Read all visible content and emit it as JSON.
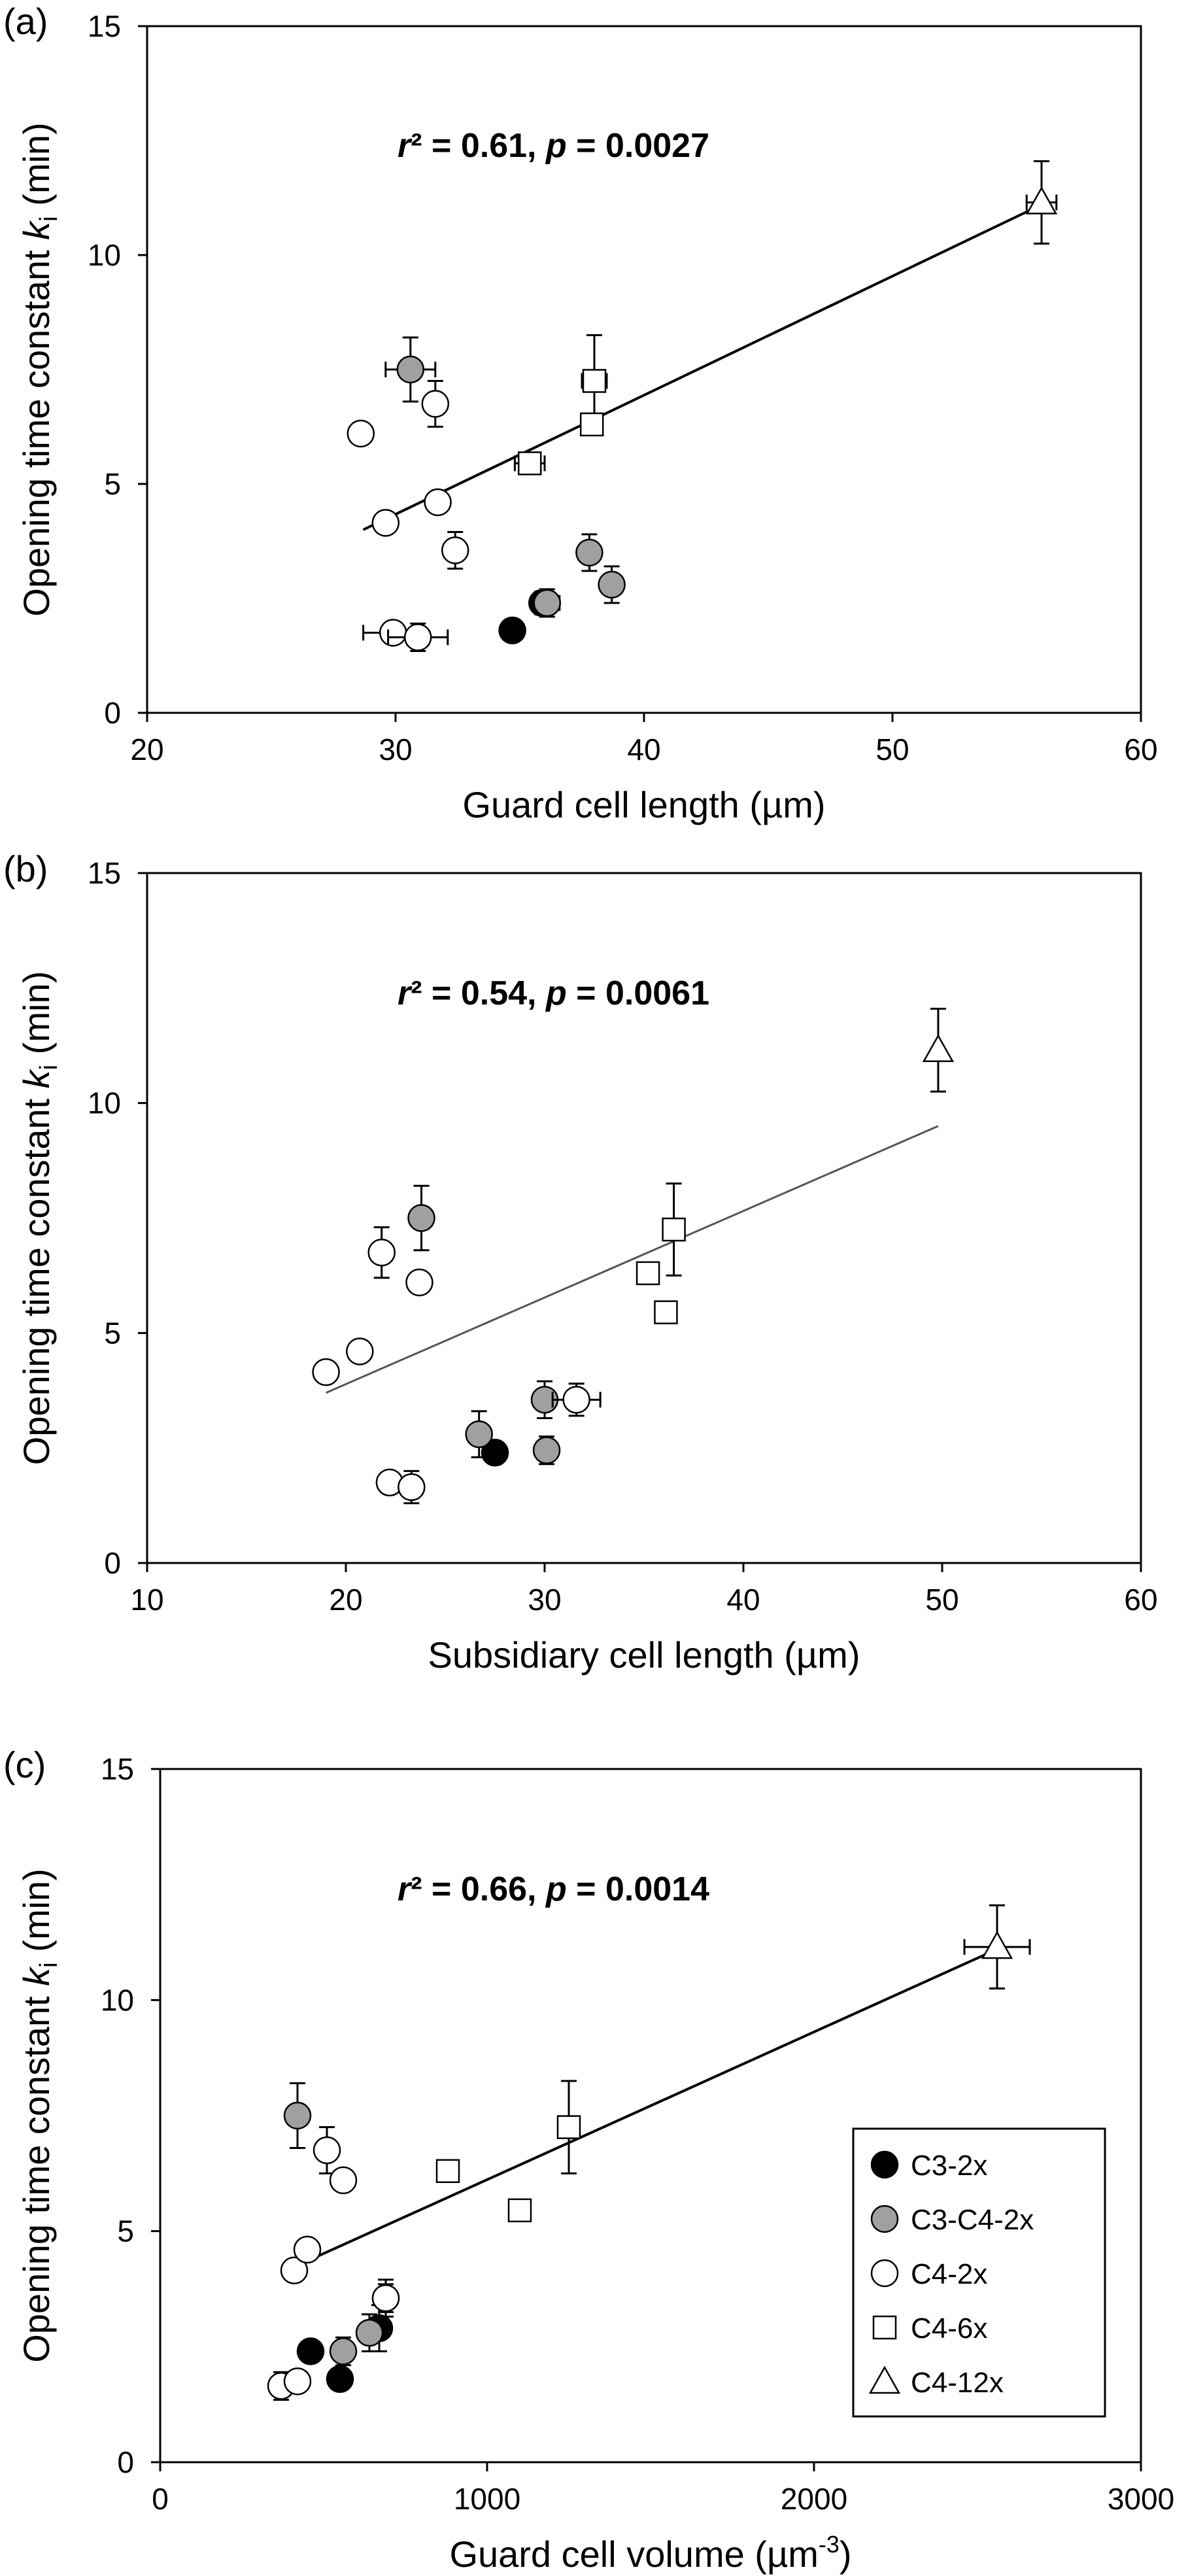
{
  "chart_data": [
    {
      "type": "scatter",
      "panel_label": "(a)",
      "xlabel": "Guard cell length  (µm)",
      "ylabel": "Opening time constant ",
      "ylabel_k": "k",
      "ylabel_sub": "i",
      "ylabel_unit": " (min)",
      "xlim": [
        20,
        60
      ],
      "ylim": [
        0,
        15
      ],
      "xticks": [
        20,
        30,
        40,
        50,
        60
      ],
      "yticks": [
        0,
        5,
        10,
        15
      ],
      "stat_r": "r",
      "stat_r2": "² = 0.61, ",
      "stat_p": "p",
      "stat_pval": " = 0.0027",
      "grid": false,
      "trendline": {
        "x": [
          28.7,
          56.0
        ],
        "y": [
          4.0,
          11.1
        ],
        "color": "#000000"
      },
      "series": [
        {
          "name": "C3-2x",
          "points": [
            {
              "x": 34.7,
              "y": 1.8
            },
            {
              "x": 35.9,
              "y": 2.4,
              "yerr": 0.25,
              "xerr": 0.4
            }
          ]
        },
        {
          "name": "C3-C4-2x",
          "points": [
            {
              "x": 30.6,
              "y": 7.5,
              "yerr": 0.7,
              "xerr": 1.0
            },
            {
              "x": 36.1,
              "y": 2.4,
              "yerr": 0.3,
              "xerr": 0.5
            },
            {
              "x": 37.8,
              "y": 3.5,
              "yerr": 0.4
            },
            {
              "x": 38.7,
              "y": 2.8,
              "yerr": 0.4
            }
          ]
        },
        {
          "name": "C4-2x",
          "points": [
            {
              "x": 28.6,
              "y": 6.1
            },
            {
              "x": 29.6,
              "y": 4.15
            },
            {
              "x": 31.6,
              "y": 6.75,
              "yerr": 0.5
            },
            {
              "x": 31.7,
              "y": 4.6
            },
            {
              "x": 32.4,
              "y": 3.55,
              "yerr": 0.4
            },
            {
              "x": 29.9,
              "y": 1.75,
              "xerr": 1.2
            },
            {
              "x": 30.9,
              "y": 1.65,
              "yerr": 0.3,
              "xerr": 1.2
            }
          ]
        },
        {
          "name": "C4-6x",
          "points": [
            {
              "x": 35.4,
              "y": 5.45,
              "xerr": 0.6
            },
            {
              "x": 38.0,
              "y": 7.25,
              "yerr": 1.0,
              "xerr": 0.5
            },
            {
              "x": 37.9,
              "y": 6.3
            }
          ]
        },
        {
          "name": "C4-12x",
          "points": [
            {
              "x": 56.0,
              "y": 11.15,
              "yerr": 0.9,
              "xerr": 0.6
            }
          ]
        }
      ]
    },
    {
      "type": "scatter",
      "panel_label": "(b)",
      "xlabel": "Subsidiary cell length  (µm)",
      "ylabel": "Opening time constant ",
      "ylabel_k": "k",
      "ylabel_sub": "i",
      "ylabel_unit": " (min)",
      "xlim": [
        10,
        60
      ],
      "ylim": [
        0,
        15
      ],
      "xticks": [
        10,
        20,
        30,
        40,
        50,
        60
      ],
      "yticks": [
        0,
        5,
        10,
        15
      ],
      "stat_r": "r",
      "stat_r2": "² = 0.54, ",
      "stat_p": "p",
      "stat_pval": " = 0.0061",
      "grid": false,
      "trendline": {
        "x": [
          19.0,
          49.8
        ],
        "y": [
          3.7,
          9.5
        ],
        "color": "#555555"
      },
      "series": [
        {
          "name": "C3-2x",
          "points": [
            {
              "x": 27.5,
              "y": 2.4
            }
          ]
        },
        {
          "name": "C3-C4-2x",
          "points": [
            {
              "x": 23.8,
              "y": 7.5,
              "yerr": 0.7
            },
            {
              "x": 26.7,
              "y": 2.8,
              "yerr": 0.5
            },
            {
              "x": 30.0,
              "y": 3.55,
              "yerr": 0.4
            },
            {
              "x": 30.1,
              "y": 2.45,
              "yerr": 0.3
            }
          ]
        },
        {
          "name": "C4-2x",
          "points": [
            {
              "x": 21.8,
              "y": 6.75,
              "yerr": 0.55
            },
            {
              "x": 23.7,
              "y": 6.1
            },
            {
              "x": 19.0,
              "y": 4.15
            },
            {
              "x": 20.7,
              "y": 4.6
            },
            {
              "x": 31.6,
              "y": 3.55,
              "yerr": 0.35,
              "xerr": 1.2
            },
            {
              "x": 22.2,
              "y": 1.75
            },
            {
              "x": 23.3,
              "y": 1.65,
              "yerr": 0.35
            }
          ]
        },
        {
          "name": "C4-6x",
          "points": [
            {
              "x": 35.2,
              "y": 6.3
            },
            {
              "x": 36.5,
              "y": 7.25,
              "yerr": 1.0
            },
            {
              "x": 36.1,
              "y": 5.45,
              "xerr": 0.5
            }
          ]
        },
        {
          "name": "C4-12x",
          "points": [
            {
              "x": 49.8,
              "y": 11.15,
              "yerr": 0.9
            }
          ]
        }
      ]
    },
    {
      "type": "scatter",
      "panel_label": "(c)",
      "xlabel": "Guard cell volume  (µm",
      "xlabel_sup": "-3",
      "xlabel_end": ")",
      "ylabel": "Opening time constant ",
      "ylabel_k": "k",
      "ylabel_sub": "i",
      "ylabel_unit": " (min)",
      "xlim": [
        0,
        3000
      ],
      "ylim": [
        0,
        15
      ],
      "xticks": [
        0,
        1000,
        2000,
        3000
      ],
      "yticks": [
        0,
        5,
        10,
        15
      ],
      "stat_r": "r",
      "stat_r2": "² = 0.66, ",
      "stat_p": "p",
      "stat_pval": " = 0.0014",
      "grid": false,
      "legend_position": "right",
      "trendline": {
        "x": [
          370,
          2560
        ],
        "y": [
          4.1,
          11.1
        ],
        "color": "#000000"
      },
      "series": [
        {
          "name": "C3-2x",
          "points": [
            {
              "x": 460,
              "y": 2.4
            },
            {
              "x": 550,
              "y": 1.8
            },
            {
              "x": 670,
              "y": 2.9,
              "yerr": 0.5
            }
          ]
        },
        {
          "name": "C3-C4-2x",
          "points": [
            {
              "x": 420,
              "y": 7.5,
              "yerr": 0.7
            },
            {
              "x": 560,
              "y": 2.4,
              "yerr": 0.3
            },
            {
              "x": 640,
              "y": 2.8,
              "yerr": 0.4
            },
            {
              "x": 690,
              "y": 3.55,
              "yerr": 0.4
            }
          ]
        },
        {
          "name": "C4-2x",
          "points": [
            {
              "x": 510,
              "y": 6.75,
              "yerr": 0.5
            },
            {
              "x": 560,
              "y": 6.1
            },
            {
              "x": 410,
              "y": 4.15
            },
            {
              "x": 450,
              "y": 4.6
            },
            {
              "x": 690,
              "y": 3.55,
              "yerr": 0.3
            },
            {
              "x": 370,
              "y": 1.65,
              "yerr": 0.3
            },
            {
              "x": 420,
              "y": 1.75
            }
          ]
        },
        {
          "name": "C4-6x",
          "points": [
            {
              "x": 880,
              "y": 6.3
            },
            {
              "x": 1250,
              "y": 7.25,
              "yerr": 1.0
            },
            {
              "x": 1100,
              "y": 5.45,
              "yerr": 0.2
            }
          ]
        },
        {
          "name": "C4-12x",
          "points": [
            {
              "x": 2560,
              "y": 11.15,
              "yerr": 0.9,
              "xerr": 100
            }
          ]
        }
      ]
    }
  ],
  "legend": {
    "entries": [
      {
        "label": "C3-2x",
        "marker": "circle",
        "fill": "#000000"
      },
      {
        "label": "C3-C4-2x",
        "marker": "circle",
        "fill": "#a0a0a0"
      },
      {
        "label": "C4-2x",
        "marker": "circle",
        "fill": "#ffffff"
      },
      {
        "label": "C4-6x",
        "marker": "square",
        "fill": "#ffffff"
      },
      {
        "label": "C4-12x",
        "marker": "triangle",
        "fill": "#ffffff"
      }
    ]
  }
}
